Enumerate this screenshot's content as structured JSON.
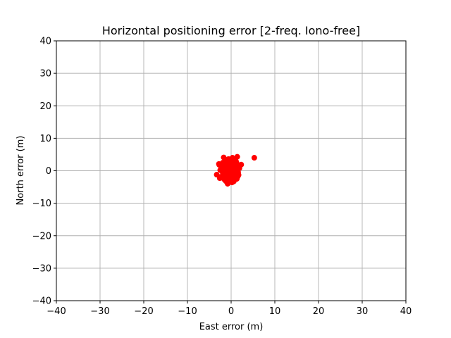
{
  "chart_data": {
    "type": "scatter",
    "title": "Horizontal positioning error [2-freq. Iono-free]",
    "xlabel": "East error (m)",
    "ylabel": "North error (m)",
    "xlim": [
      -40,
      40
    ],
    "ylim": [
      -40,
      40
    ],
    "xticks": [
      -40,
      -30,
      -20,
      -10,
      0,
      10,
      20,
      30,
      40
    ],
    "yticks": [
      -40,
      -30,
      -20,
      -10,
      0,
      10,
      20,
      30,
      40
    ],
    "xtick_labels": [
      "−40",
      "−30",
      "−20",
      "−10",
      "0",
      "10",
      "20",
      "30",
      "40"
    ],
    "ytick_labels": [
      "−40",
      "−30",
      "−20",
      "−10",
      "0",
      "10",
      "20",
      "30",
      "40"
    ],
    "grid": true,
    "marker_color": "#ff0000",
    "grid_color": "#b0b0b0",
    "series": [
      {
        "x": [
          5.3,
          1.4,
          -1.7,
          0.3,
          2.3,
          -3.3,
          -0.8,
          -2.6,
          1.3,
          -1.9,
          0.6,
          -0.4,
          1.8,
          -2.2,
          0.9,
          -1.2,
          1.6,
          -0.2,
          -2.7,
          0.4,
          -1.5,
          1.1,
          -0.6,
          0.1,
          -1.0,
          0.7,
          -2.0,
          1.5,
          -0.3,
          0.2,
          -1.3,
          0.8,
          -0.9,
          1.2,
          -1.8,
          0.5,
          -0.5,
          -2.4,
          1.9,
          -1.1,
          0.0,
          -0.7,
          1.0,
          -1.6,
          0.3,
          -2.1,
          1.7,
          -0.1,
          -1.4,
          0.6,
          -0.8,
          1.3,
          -2.5,
          0.9,
          -0.4,
          -1.9,
          1.4,
          -1.0,
          0.4,
          -0.2,
          -2.8,
          -1.6,
          0.2,
          1.1,
          -0.6,
          -1.2,
          0.7,
          -0.3
        ],
        "y": [
          4.0,
          4.3,
          4.1,
          4.0,
          1.9,
          -1.2,
          -4.0,
          -2.3,
          -2.5,
          2.5,
          -3.3,
          3.3,
          1.2,
          0.6,
          2.2,
          -1.0,
          -0.5,
          0.4,
          1.8,
          -1.5,
          1.0,
          0.3,
          -0.8,
          2.8,
          -2.1,
          1.5,
          -0.3,
          -1.8,
          1.7,
          -2.9,
          3.0,
          -0.9,
          0.9,
          2.6,
          -1.4,
          0.0,
          2.0,
          -1.9,
          0.8,
          -3.0,
          -1.2,
          0.5,
          -2.2,
          2.3,
          1.2,
          1.4,
          -1.3,
          -0.6,
          -0.1,
          3.1,
          -2.7,
          1.9,
          0.2,
          -1.6,
          -2.0,
          -0.7,
          0.1,
          1.3,
          -0.2,
          2.4,
          2.1,
          -2.6,
          -3.6,
          2.9,
          3.6,
          -3.2,
          0.7,
          -1.1
        ]
      }
    ]
  }
}
